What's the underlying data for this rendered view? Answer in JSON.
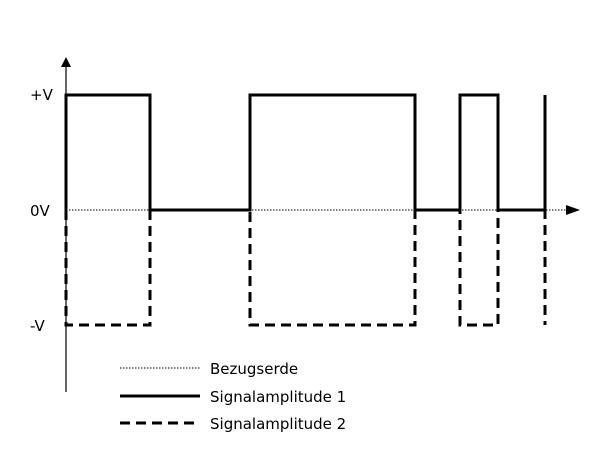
{
  "axis_labels": {
    "plus_v": "+V",
    "zero_v": "0V",
    "minus_v": "-V"
  },
  "legend": {
    "ground": "Bezugserde",
    "signal1": "Signalamplitude 1",
    "signal2": "Signalamplitude 2"
  },
  "colors": {
    "line": "#000000",
    "background": "#ffffff"
  }
}
